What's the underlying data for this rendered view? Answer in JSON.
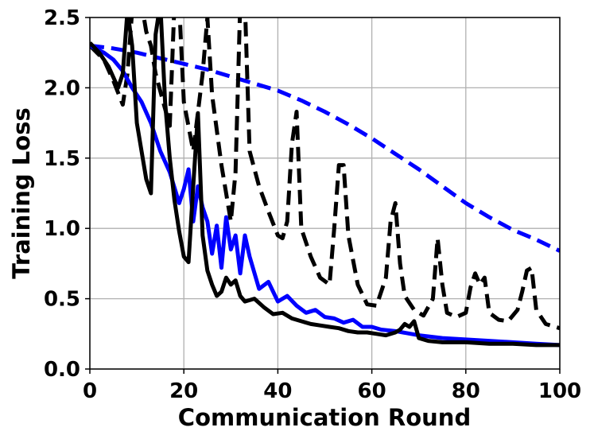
{
  "chart_data": {
    "type": "line",
    "title": "",
    "xlabel": "Communication Round",
    "ylabel": "Training Loss",
    "xlim": [
      0,
      100
    ],
    "ylim": [
      0.0,
      2.5
    ],
    "xticks": [
      0,
      20,
      40,
      60,
      80,
      100
    ],
    "xtick_labels": [
      "0",
      "20",
      "40",
      "60",
      "80",
      "100"
    ],
    "yticks": [
      0.0,
      0.5,
      1.0,
      1.5,
      2.0,
      2.5
    ],
    "ytick_labels": [
      "0.0",
      "0.5",
      "1.0",
      "1.5",
      "2.0",
      "2.5"
    ],
    "grid": true,
    "legend": "none",
    "series": [
      {
        "color": "#0000ff",
        "dash": "dashed",
        "x": [
          0,
          5,
          10,
          15,
          20,
          25,
          30,
          35,
          40,
          45,
          50,
          55,
          60,
          65,
          70,
          75,
          80,
          85,
          90,
          95,
          100
        ],
        "y": [
          2.3,
          2.28,
          2.25,
          2.21,
          2.17,
          2.13,
          2.08,
          2.03,
          1.98,
          1.91,
          1.83,
          1.74,
          1.64,
          1.53,
          1.42,
          1.3,
          1.18,
          1.08,
          0.99,
          0.92,
          0.84
        ]
      },
      {
        "color": "#000000",
        "dash": "dashed",
        "x": [
          0,
          3,
          5,
          7,
          8,
          9,
          10,
          11,
          12,
          13,
          14,
          16,
          17,
          18,
          19,
          20,
          22,
          24,
          25,
          26,
          28,
          30,
          31,
          32,
          33,
          34,
          36,
          38,
          40,
          41,
          42,
          43,
          44,
          45,
          47,
          49,
          51,
          52,
          53,
          54,
          55,
          57,
          59,
          61,
          63,
          64,
          65,
          66,
          67,
          69,
          71,
          73,
          74,
          75,
          76,
          78,
          80,
          81,
          82,
          83,
          84,
          85,
          87,
          89,
          91,
          92,
          93,
          94,
          95,
          97,
          100
        ],
        "y": [
          2.3,
          2.2,
          2.05,
          1.88,
          2.1,
          2.55,
          2.55,
          2.6,
          2.4,
          2.3,
          2.1,
          1.85,
          1.73,
          2.6,
          2.6,
          1.9,
          1.55,
          2.1,
          2.5,
          1.95,
          1.45,
          1.05,
          1.4,
          2.6,
          2.6,
          1.55,
          1.3,
          1.12,
          0.95,
          0.93,
          1.05,
          1.6,
          1.83,
          1.0,
          0.8,
          0.65,
          0.6,
          1.0,
          1.45,
          1.45,
          0.95,
          0.6,
          0.46,
          0.45,
          0.65,
          1.05,
          1.18,
          0.75,
          0.52,
          0.42,
          0.38,
          0.5,
          0.93,
          0.6,
          0.4,
          0.37,
          0.4,
          0.58,
          0.68,
          0.6,
          0.65,
          0.4,
          0.35,
          0.34,
          0.42,
          0.55,
          0.7,
          0.72,
          0.42,
          0.32,
          0.29
        ]
      },
      {
        "color": "#0000ff",
        "dash": "solid",
        "x": [
          0,
          3,
          5,
          7,
          9,
          11,
          13,
          15,
          17,
          19,
          20,
          21,
          22,
          23,
          24,
          25,
          26,
          27,
          28,
          29,
          30,
          31,
          32,
          33,
          34,
          36,
          38,
          40,
          42,
          44,
          46,
          48,
          50,
          52,
          54,
          56,
          58,
          60,
          62,
          65,
          70,
          75,
          80,
          85,
          90,
          95,
          100
        ],
        "y": [
          2.3,
          2.25,
          2.2,
          2.12,
          2.0,
          1.9,
          1.75,
          1.55,
          1.4,
          1.18,
          1.28,
          1.42,
          1.05,
          1.3,
          1.15,
          1.05,
          0.82,
          1.02,
          0.72,
          1.08,
          0.85,
          0.95,
          0.68,
          0.95,
          0.8,
          0.57,
          0.62,
          0.48,
          0.52,
          0.45,
          0.4,
          0.42,
          0.37,
          0.36,
          0.33,
          0.35,
          0.3,
          0.3,
          0.28,
          0.27,
          0.24,
          0.22,
          0.21,
          0.2,
          0.19,
          0.18,
          0.17
        ]
      },
      {
        "color": "#000000",
        "dash": "solid",
        "x": [
          0,
          2,
          4,
          6,
          7,
          8,
          9,
          10,
          11,
          12,
          13,
          14,
          15,
          16,
          17,
          18,
          19,
          20,
          21,
          22,
          23,
          24,
          25,
          26,
          27,
          28,
          29,
          30,
          31,
          32,
          33,
          35,
          37,
          39,
          41,
          43,
          45,
          47,
          49,
          51,
          53,
          55,
          57,
          59,
          61,
          63,
          65,
          66,
          67,
          68,
          69,
          70,
          72,
          75,
          80,
          85,
          90,
          95,
          100
        ],
        "y": [
          2.32,
          2.25,
          2.15,
          2.0,
          2.1,
          2.55,
          2.3,
          1.75,
          1.55,
          1.35,
          1.25,
          2.38,
          2.6,
          1.9,
          1.5,
          1.2,
          0.98,
          0.8,
          0.76,
          1.3,
          1.82,
          0.95,
          0.7,
          0.6,
          0.52,
          0.55,
          0.65,
          0.6,
          0.63,
          0.52,
          0.48,
          0.5,
          0.44,
          0.39,
          0.4,
          0.36,
          0.34,
          0.32,
          0.31,
          0.3,
          0.29,
          0.27,
          0.26,
          0.26,
          0.25,
          0.24,
          0.26,
          0.28,
          0.32,
          0.3,
          0.34,
          0.22,
          0.2,
          0.19,
          0.19,
          0.18,
          0.18,
          0.17,
          0.17
        ]
      }
    ]
  }
}
